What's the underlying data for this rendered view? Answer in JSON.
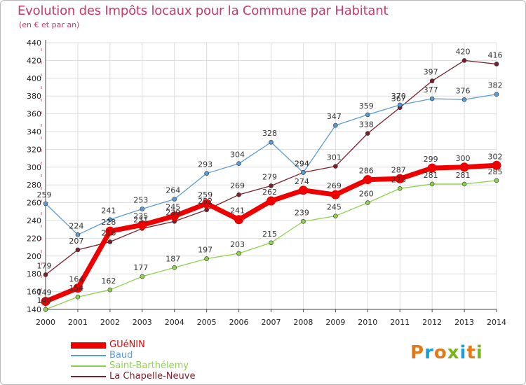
{
  "title": "Evolution des Impôts locaux pour la Commune par Habitant",
  "subtitle": "(en € et par an)",
  "logo": {
    "text": "Proxiti",
    "colors": [
      "#e07a1a",
      "#1aa0d8",
      "#e07a1a",
      "#7ab51d",
      "#1aa0d8",
      "#e07a1a",
      "#7ab51d"
    ]
  },
  "chart_data": {
    "type": "line",
    "x": [
      2000,
      2001,
      2002,
      2003,
      2004,
      2005,
      2006,
      2007,
      2008,
      2009,
      2010,
      2011,
      2012,
      2013,
      2014
    ],
    "ylim": [
      140,
      440
    ],
    "yticks": [
      140,
      160,
      180,
      200,
      220,
      240,
      260,
      280,
      300,
      320,
      340,
      360,
      380,
      400,
      420,
      440
    ],
    "grid": true,
    "legend_position": "bottom-left",
    "series": [
      {
        "name": "GUéNIN",
        "color": "#ee0000",
        "values": [
          149,
          164,
          228,
          235,
          245,
          259,
          241,
          262,
          274,
          269,
          286,
          287,
          299,
          300,
          302
        ]
      },
      {
        "name": "Baud",
        "color": "#5b9bd5",
        "values": [
          259,
          224,
          241,
          253,
          264,
          293,
          304,
          328,
          294,
          347,
          359,
          370,
          377,
          376,
          382
        ]
      },
      {
        "name": "Saint-Barthélemy",
        "color": "#90d050",
        "values": [
          140,
          154,
          162,
          177,
          187,
          197,
          203,
          215,
          239,
          245,
          260,
          276,
          281,
          281,
          285
        ]
      },
      {
        "name": "La Chapelle-Neuve",
        "color": "#7a1f2b",
        "values": [
          179,
          207,
          216,
          231,
          239,
          252,
          269,
          279,
          294,
          301,
          338,
          367,
          397,
          420,
          416
        ]
      }
    ],
    "labels": [
      [
        "149",
        "164",
        "228",
        "235",
        "245",
        "259",
        "241",
        "262",
        "274",
        "269",
        "286",
        "287",
        "299",
        "300",
        "302"
      ],
      [
        "259",
        "224",
        "241",
        "253",
        "264",
        "293",
        "304",
        "328",
        "294",
        "347",
        "359",
        "370",
        "377",
        "376",
        "382"
      ],
      [
        "140",
        "154",
        "162",
        "177",
        "187",
        "197",
        "203",
        "215",
        "239",
        "245",
        "260",
        "276",
        "281",
        "281",
        "285"
      ],
      [
        "179",
        "207",
        "216",
        "231",
        "239",
        "252",
        "269",
        "279",
        "294",
        "301",
        "338",
        "367",
        "397",
        "420",
        "416"
      ]
    ]
  }
}
